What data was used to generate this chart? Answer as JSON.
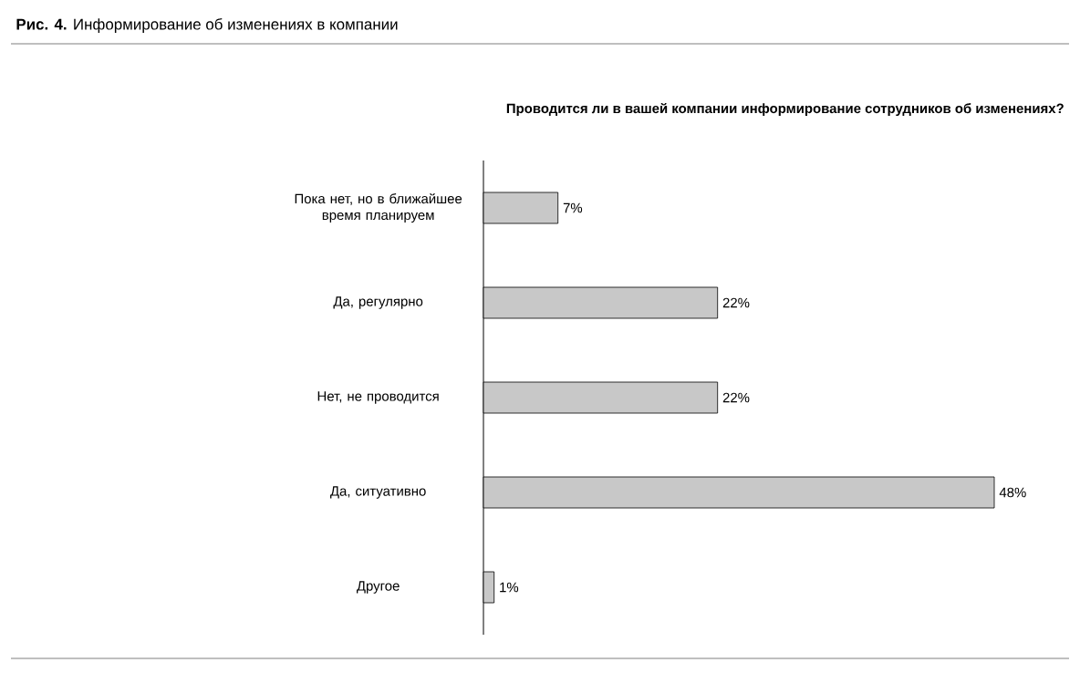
{
  "chart_data": {
    "type": "bar",
    "orientation": "horizontal",
    "title": "**Рис. 4.** Информирование об изменениях в компании",
    "subtitle": "**Проводится ли в вашей компании информирование сотрудников об изменениях?**",
    "categories": [
      "Пока нет, но в ближайшее время планируем",
      "Да, регулярно",
      "Нет, не проводится",
      "Да, ситуативно",
      "Другое"
    ],
    "values": [
      7,
      22,
      22,
      48,
      1
    ],
    "value_labels": [
      "7%",
      "22%",
      "22%",
      "48%",
      "1%"
    ],
    "color": "#c8c8c8",
    "xlim": [
      0,
      48
    ]
  }
}
